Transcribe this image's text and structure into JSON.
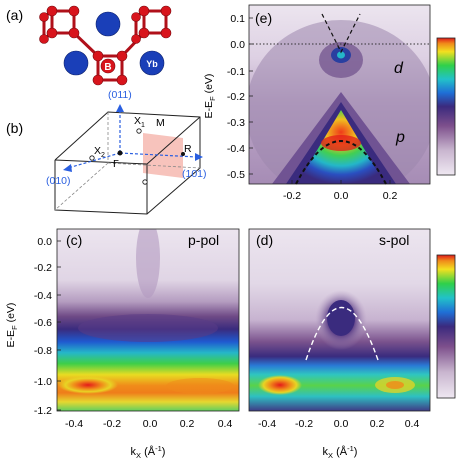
{
  "panels": {
    "a": {
      "label": "(a)",
      "atom_b": "B",
      "atom_yb": "Yb"
    },
    "b": {
      "label": "(b)",
      "dir_011": "(011)",
      "dir_010": "(010)",
      "dir_101": "(101)",
      "x1": "X",
      "x1_sub": "1",
      "x2": "X",
      "x2_sub": "2",
      "m": "M",
      "r": "R",
      "gamma": "Γ"
    },
    "c": {
      "label": "(c)",
      "pol": "p-pol"
    },
    "d": {
      "label": "(d)",
      "pol": "s-pol"
    },
    "e": {
      "label": "(e)",
      "band_d": "d",
      "band_p": "p"
    }
  },
  "axes": {
    "e_ylabel": "E-E",
    "e_ylabel_sub": "F",
    "e_ylabel_unit": " (eV)",
    "e_yticks": [
      "0.1",
      "0.0",
      "-0.1",
      "-0.2",
      "-0.3",
      "-0.4",
      "-0.5"
    ],
    "e_xticks": [
      "-0.2",
      "0.0",
      "0.2"
    ],
    "cd_ylabel": "E-E",
    "cd_ylabel_sub": "F",
    "cd_ylabel_unit": " (eV)",
    "cd_yticks": [
      "0.0",
      "-0.2",
      "-0.4",
      "-0.6",
      "-0.8",
      "-1.0",
      "-1.2"
    ],
    "cd_xticks": [
      "-0.4",
      "-0.2",
      "0.0",
      "0.2",
      "0.4"
    ],
    "xlabel": "k",
    "xlabel_sub": "X",
    "xlabel_unit": " (Å",
    "xlabel_exp": "-1",
    "xlabel_close": ")"
  },
  "colors": {
    "boron": "#d8141c",
    "ytterbium": "#1a3fb8",
    "axis_blue": "#2a5fe0",
    "bz_face": "#f6b8b0"
  }
}
